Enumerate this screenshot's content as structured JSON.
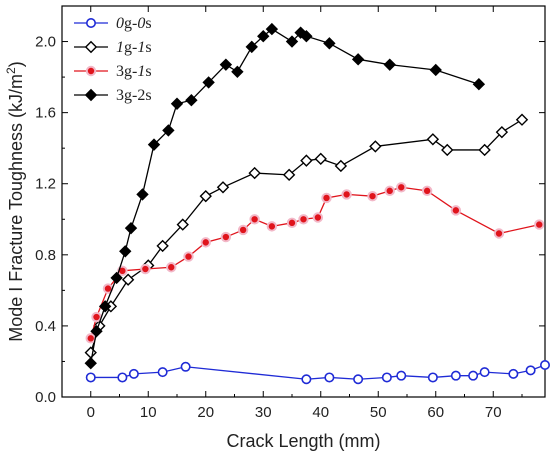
{
  "chart_data": {
    "type": "line",
    "xlabel": "Crack Length (mm)",
    "ylabel_main": "Mode I Fracture Toughness (kJ/m",
    "ylabel_sup": "2",
    "ylabel_tail": ")",
    "xlim": [
      -5,
      79
    ],
    "ylim": [
      0.0,
      2.2
    ],
    "x_ticks": [
      0,
      10,
      20,
      30,
      40,
      50,
      60,
      70
    ],
    "y_ticks": [
      0.0,
      0.4,
      0.8,
      1.2,
      1.6,
      2.0
    ],
    "y_tick_labels": [
      "0.0",
      "0.4",
      "0.8",
      "1.2",
      "1.6",
      "2.0"
    ],
    "legend_position": "top-left",
    "series": [
      {
        "name": "0g-0s",
        "legend_parts": [
          [
            "0",
            "italic"
          ],
          [
            "g-",
            "normal"
          ],
          [
            "0",
            "italic"
          ],
          [
            "s",
            "normal"
          ]
        ],
        "color": "#1f2bd6",
        "marker": "circle-open",
        "x": [
          0,
          5.5,
          7.5,
          12.5,
          16.5,
          37.5,
          41.5,
          46.5,
          51.5,
          54,
          59.5,
          63.5,
          66.5,
          68.5,
          73.5,
          76.5,
          79
        ],
        "y": [
          0.11,
          0.11,
          0.13,
          0.14,
          0.17,
          0.1,
          0.11,
          0.1,
          0.11,
          0.12,
          0.11,
          0.12,
          0.12,
          0.14,
          0.13,
          0.15,
          0.18
        ]
      },
      {
        "name": "1g-1s",
        "legend_parts": [
          [
            "1",
            "italic"
          ],
          [
            "g-",
            "normal"
          ],
          [
            "1",
            "italic"
          ],
          [
            "s",
            "normal"
          ]
        ],
        "color": "#000000",
        "marker": "diamond-open",
        "x": [
          0,
          1.5,
          3.5,
          6.5,
          10,
          12.5,
          16,
          20,
          23,
          28.5,
          34.5,
          37.5,
          40,
          43.5,
          49.5,
          59.5,
          62,
          68.5,
          71.5,
          75
        ],
        "y": [
          0.25,
          0.4,
          0.51,
          0.66,
          0.74,
          0.85,
          0.97,
          1.13,
          1.18,
          1.26,
          1.25,
          1.33,
          1.34,
          1.3,
          1.41,
          1.45,
          1.39,
          1.39,
          1.49,
          1.56
        ]
      },
      {
        "name": "3g-1s",
        "legend_parts": [
          [
            "3",
            "normal"
          ],
          [
            "g-",
            "normal"
          ],
          [
            "1",
            "italic"
          ],
          [
            "s",
            "normal"
          ]
        ],
        "color": "#e0141c",
        "marker": "circle-filled",
        "x": [
          0,
          1,
          3,
          5.5,
          9.5,
          14,
          17,
          20,
          23.5,
          26.5,
          28.5,
          31.5,
          35,
          37,
          39.5,
          41,
          44.5,
          49,
          52,
          54,
          58.5,
          63.5,
          71,
          78
        ],
        "y": [
          0.33,
          0.45,
          0.61,
          0.71,
          0.72,
          0.73,
          0.79,
          0.87,
          0.9,
          0.94,
          1.0,
          0.96,
          0.98,
          1.0,
          1.01,
          1.12,
          1.14,
          1.13,
          1.16,
          1.18,
          1.16,
          1.05,
          0.92,
          0.97
        ]
      },
      {
        "name": "3g-2s",
        "legend_parts": [
          [
            "3",
            "normal"
          ],
          [
            "g-",
            "normal"
          ],
          [
            "2",
            "normal"
          ],
          [
            "s",
            "normal"
          ]
        ],
        "color": "#000000",
        "marker": "diamond-filled",
        "x": [
          0,
          1,
          2.5,
          4.5,
          6,
          7,
          9,
          11,
          13.5,
          15,
          17.5,
          20.5,
          23.5,
          25.5,
          28,
          30,
          31.5,
          35,
          36.5,
          37.5,
          41.5,
          46.5,
          52,
          60,
          67.5
        ],
        "y": [
          0.19,
          0.37,
          0.51,
          0.67,
          0.82,
          0.95,
          1.14,
          1.42,
          1.5,
          1.65,
          1.67,
          1.77,
          1.87,
          1.83,
          1.97,
          2.03,
          2.07,
          2.0,
          2.05,
          2.03,
          1.99,
          1.9,
          1.87,
          1.84,
          1.76
        ]
      }
    ]
  }
}
